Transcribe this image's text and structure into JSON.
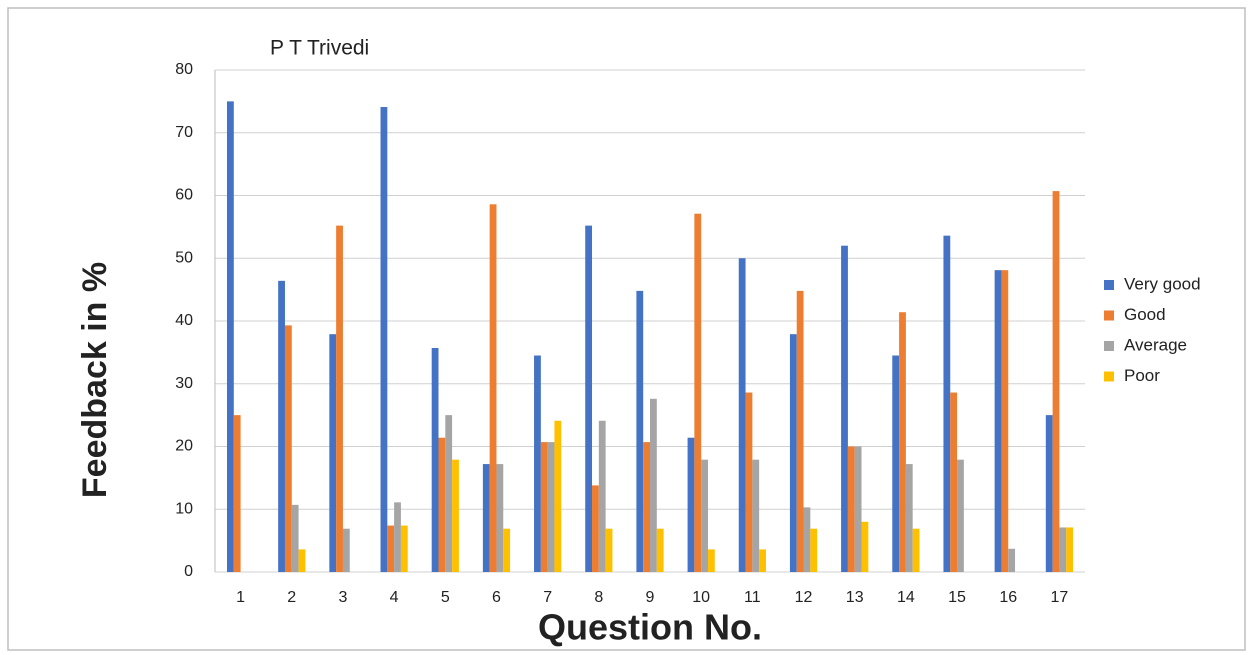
{
  "chart_data": {
    "type": "bar",
    "title": "P T Trivedi",
    "x_label": "Question No.",
    "y_label": "Feedback in %",
    "categories": [
      "1",
      "2",
      "3",
      "4",
      "5",
      "6",
      "7",
      "8",
      "9",
      "10",
      "11",
      "12",
      "13",
      "14",
      "15",
      "16",
      "17"
    ],
    "series": [
      {
        "name": "Very good",
        "color": "#4472c4",
        "values": [
          75,
          46.4,
          37.9,
          74.1,
          35.7,
          17.2,
          34.5,
          55.2,
          44.8,
          21.4,
          50,
          37.9,
          52,
          34.5,
          53.6,
          48.1,
          25
        ]
      },
      {
        "name": "Good",
        "color": "#ed7d31",
        "values": [
          25,
          39.3,
          55.2,
          7.4,
          21.4,
          58.6,
          20.7,
          13.8,
          20.7,
          57.1,
          28.6,
          44.8,
          20,
          41.4,
          28.6,
          48.1,
          60.7
        ]
      },
      {
        "name": "Average",
        "color": "#a5a5a5",
        "values": [
          0,
          10.7,
          6.9,
          11.1,
          25,
          17.2,
          20.7,
          24.1,
          27.6,
          17.9,
          17.9,
          10.3,
          20,
          17.2,
          17.9,
          3.7,
          7.1
        ]
      },
      {
        "name": "Poor",
        "color": "#ffc000",
        "values": [
          0,
          3.6,
          0,
          7.4,
          17.9,
          6.9,
          24.1,
          6.9,
          6.9,
          3.6,
          3.6,
          6.9,
          8,
          6.9,
          0,
          0,
          7.1
        ]
      }
    ],
    "ylim": [
      0,
      80
    ],
    "yticks": [
      0,
      10,
      20,
      30,
      40,
      50,
      60,
      70,
      80
    ],
    "grid": true,
    "legend": "right"
  }
}
